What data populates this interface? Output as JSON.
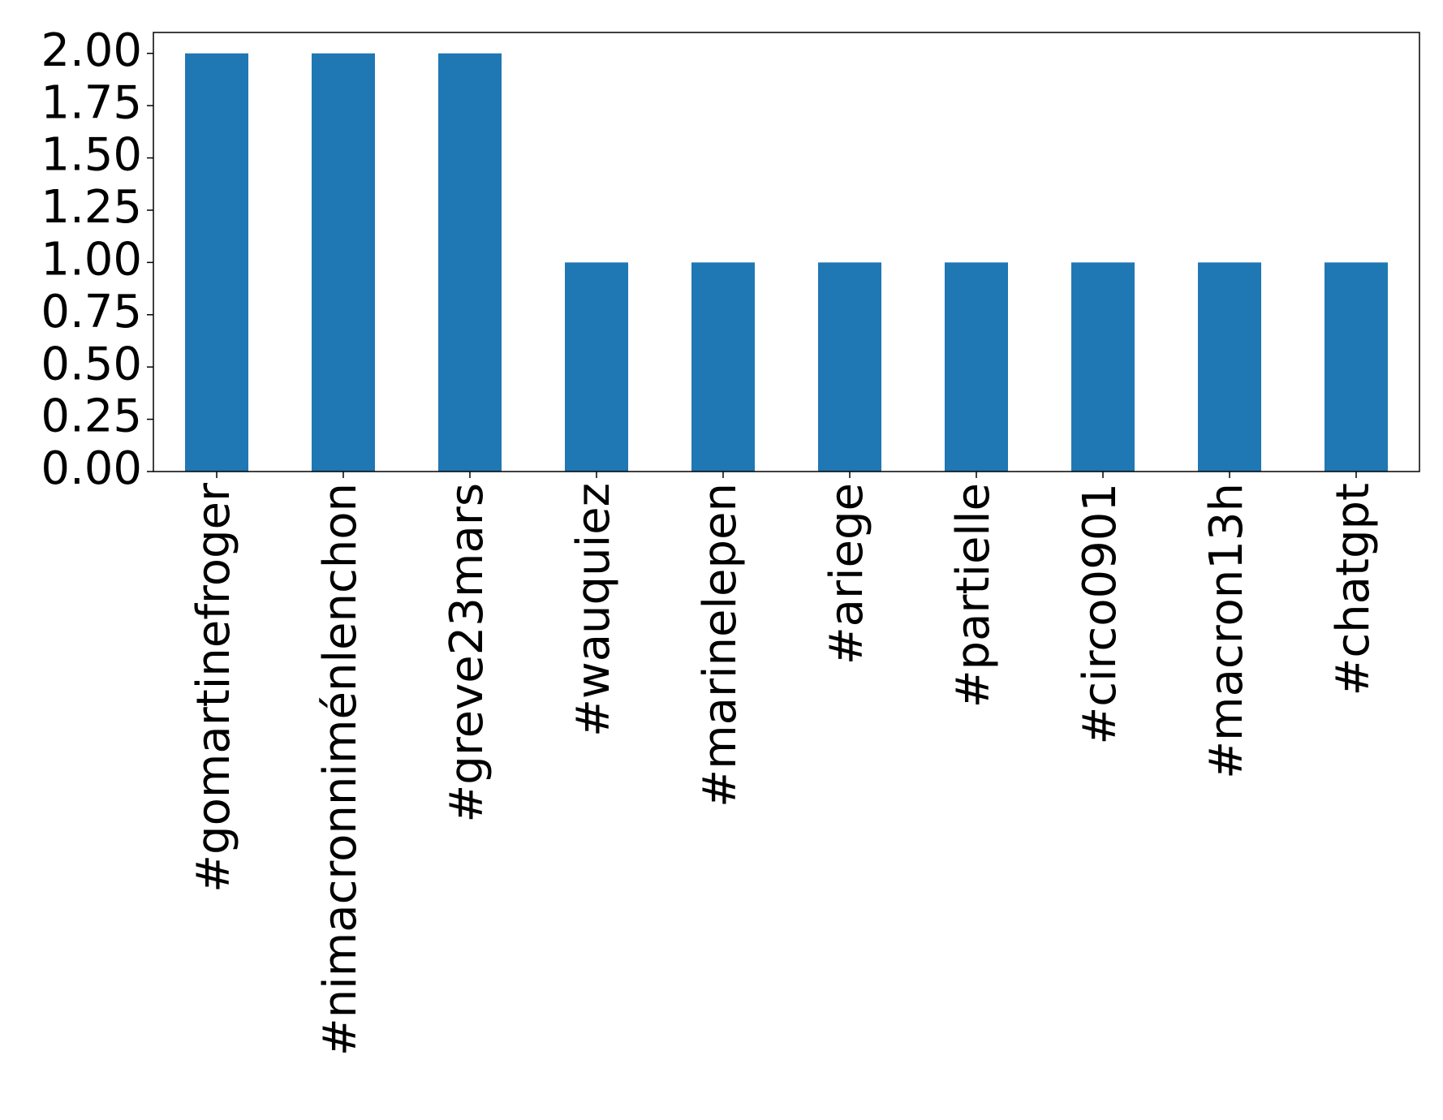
{
  "chart_data": {
    "type": "bar",
    "categories": [
      "#gomartinefroger",
      "#nimacronniménlenchon",
      "#greve23mars",
      "#wauquiez",
      "#marinelepen",
      "#ariege",
      "#partielle",
      "#circo0901",
      "#macron13h",
      "#chatgpt"
    ],
    "values": [
      2,
      2,
      2,
      1,
      1,
      1,
      1,
      1,
      1,
      1
    ],
    "color": "#1f77b4",
    "ylim": [
      0,
      2.1
    ],
    "yticks": [
      {
        "value": 0,
        "label": "0.00"
      },
      0.25,
      {
        "value": 0.5,
        "label": "0.50"
      },
      0.75,
      {
        "value": 1,
        "label": "1.00"
      },
      1.25,
      {
        "value": 1.5,
        "label": "1.50"
      },
      1.75,
      {
        "value": 2,
        "label": "2.00"
      }
    ],
    "grid": false
  }
}
